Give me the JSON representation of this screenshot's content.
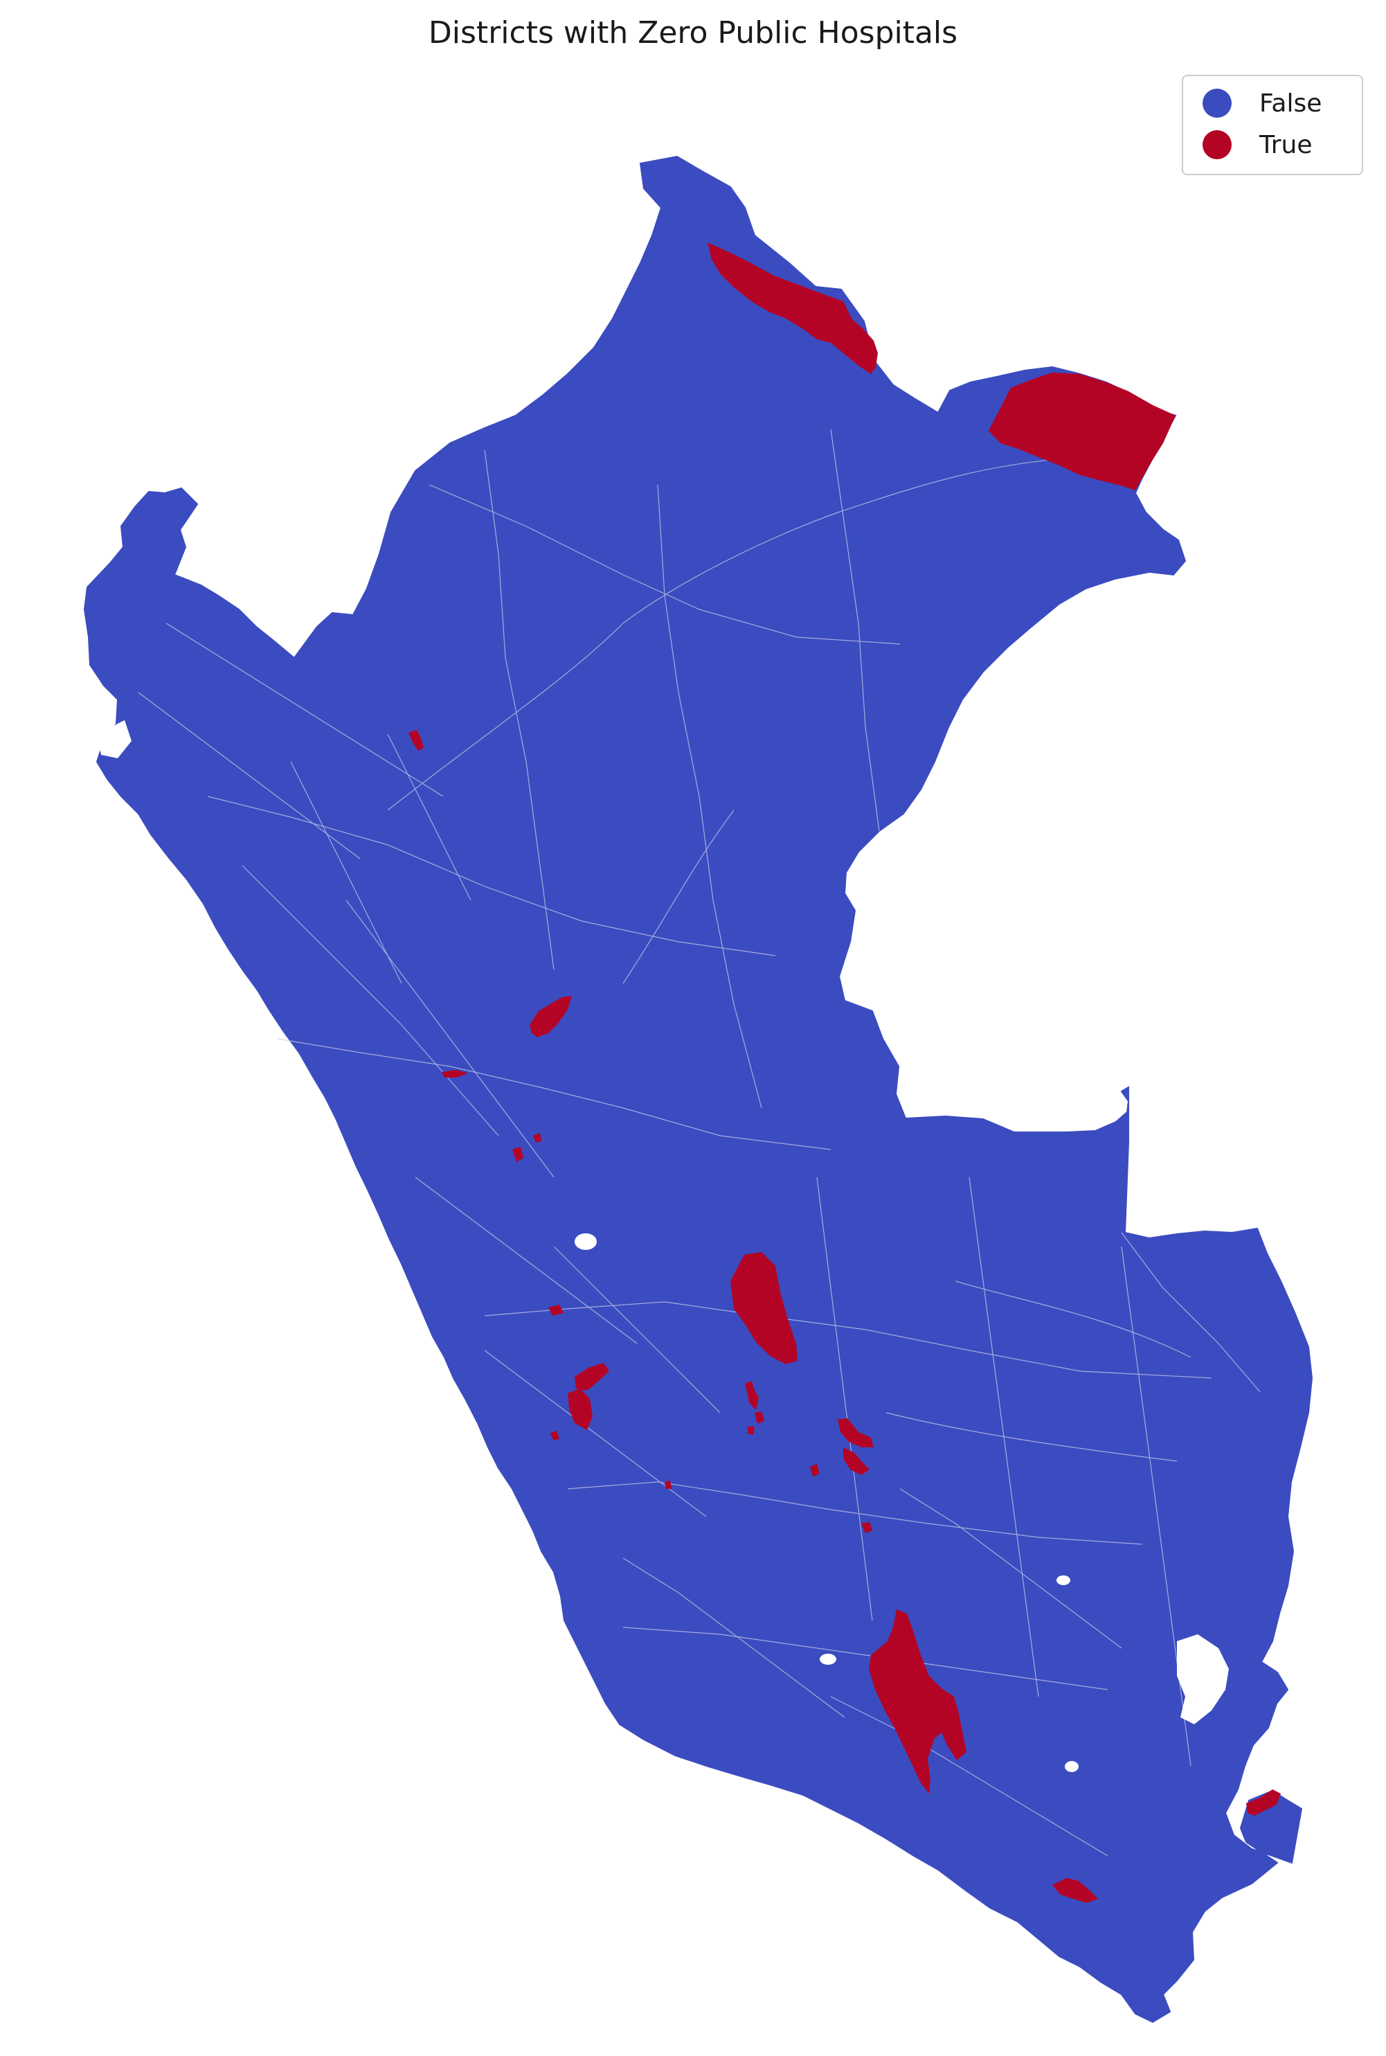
{
  "map": {
    "title": "Districts with Zero Public Hospitals",
    "colors": {
      "false": "#3b4cc0",
      "true": "#b40426",
      "district_border": "#c8cce8",
      "background": "#ffffff"
    },
    "legend": {
      "placement": "top-right",
      "items": [
        {
          "label": "False",
          "color": "#3b4cc0"
        },
        {
          "label": "True",
          "color": "#b40426"
        }
      ]
    }
  }
}
